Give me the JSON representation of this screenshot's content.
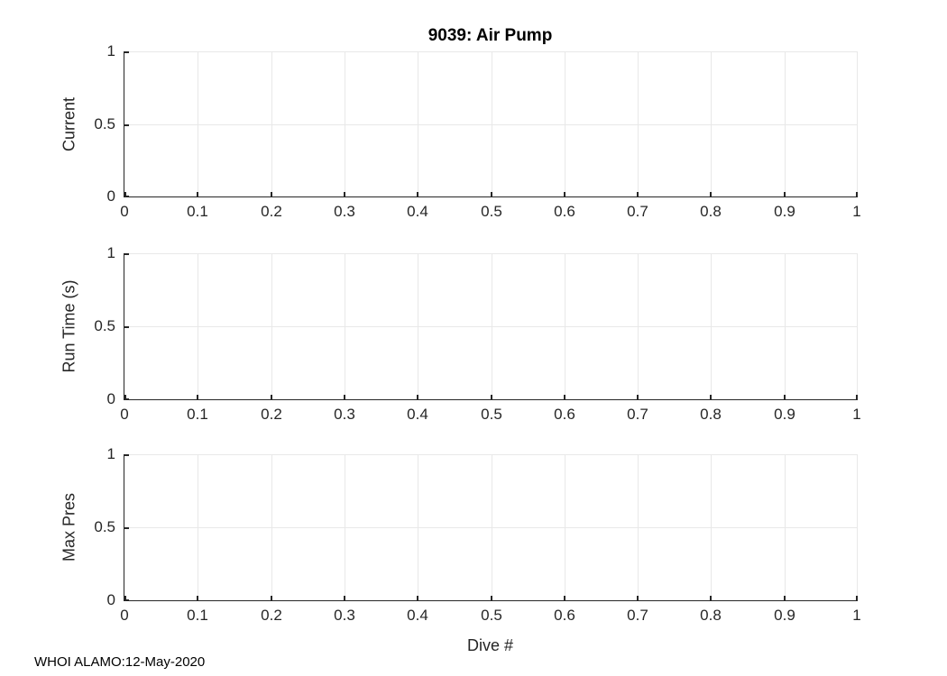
{
  "figure": {
    "title": "9039: Air Pump",
    "xlabel": "Dive #",
    "footer": "WHOI ALAMO:12-May-2020",
    "colors": {
      "background": "#ffffff",
      "axis": "#262626",
      "grid": "#e8e8e8",
      "title_text": "#000000"
    }
  },
  "chart_data": [
    {
      "type": "line",
      "title": "9039: Air Pump",
      "ylabel": "Current",
      "xlabel": "",
      "x": [],
      "series": [],
      "xlim": [
        0,
        1
      ],
      "ylim": [
        0,
        1
      ],
      "xticks": [
        0,
        0.1,
        0.2,
        0.3,
        0.4,
        0.5,
        0.6,
        0.7,
        0.8,
        0.9,
        1
      ],
      "xticklabels": [
        "0",
        "0.1",
        "0.2",
        "0.3",
        "0.4",
        "0.5",
        "0.6",
        "0.7",
        "0.8",
        "0.9",
        "1"
      ],
      "yticks": [
        0,
        0.5,
        1
      ],
      "yticklabels": [
        "0",
        "0.5",
        "1"
      ],
      "grid": true,
      "legend": null,
      "note": "empty axes - no data plotted"
    },
    {
      "type": "line",
      "title": "",
      "ylabel": "Run Time (s)",
      "xlabel": "",
      "x": [],
      "series": [],
      "xlim": [
        0,
        1
      ],
      "ylim": [
        0,
        1
      ],
      "xticks": [
        0,
        0.1,
        0.2,
        0.3,
        0.4,
        0.5,
        0.6,
        0.7,
        0.8,
        0.9,
        1
      ],
      "xticklabels": [
        "0",
        "0.1",
        "0.2",
        "0.3",
        "0.4",
        "0.5",
        "0.6",
        "0.7",
        "0.8",
        "0.9",
        "1"
      ],
      "yticks": [
        0,
        0.5,
        1
      ],
      "yticklabels": [
        "0",
        "0.5",
        "1"
      ],
      "grid": true,
      "legend": null,
      "note": "empty axes - no data plotted"
    },
    {
      "type": "line",
      "title": "",
      "ylabel": "Max Pres",
      "xlabel": "Dive #",
      "x": [],
      "series": [],
      "xlim": [
        0,
        1
      ],
      "ylim": [
        0,
        1
      ],
      "xticks": [
        0,
        0.1,
        0.2,
        0.3,
        0.4,
        0.5,
        0.6,
        0.7,
        0.8,
        0.9,
        1
      ],
      "xticklabels": [
        "0",
        "0.1",
        "0.2",
        "0.3",
        "0.4",
        "0.5",
        "0.6",
        "0.7",
        "0.8",
        "0.9",
        "1"
      ],
      "yticks": [
        0,
        0.5,
        1
      ],
      "yticklabels": [
        "0",
        "0.5",
        "1"
      ],
      "grid": true,
      "legend": null,
      "note": "empty axes - no data plotted"
    }
  ]
}
